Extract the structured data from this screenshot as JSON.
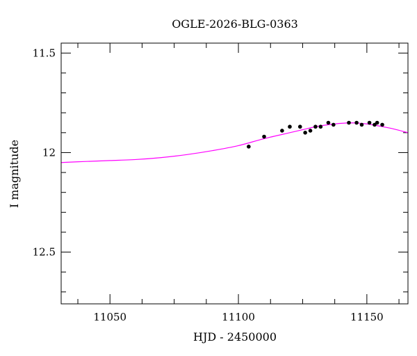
{
  "chart_data": {
    "type": "scatter",
    "title": "OGLE-2026-BLG-0363",
    "xlabel": "HJD - 2450000",
    "ylabel": "I magnitude",
    "xlim": [
      11031,
      11166
    ],
    "ylim": [
      12.76,
      11.45
    ],
    "y_inverted": true,
    "grid": false,
    "x_major_ticks": [
      11050,
      11100,
      11150
    ],
    "x_minor_ticks": [
      11025,
      11050,
      11075,
      11100,
      11125,
      11150,
      11175
    ],
    "x_minor_step": 12.5,
    "y_major_ticks": [
      11.5,
      12,
      12.5
    ],
    "y_minor_step": 0.1,
    "x_tick_labels": [
      "11050",
      "11100",
      "11150"
    ],
    "y_tick_labels": [
      "11.5",
      "12",
      "12.5"
    ],
    "colors": {
      "points": "#000000",
      "model": "#ff00ff",
      "axes": "#000000"
    },
    "series": [
      {
        "kind": "points",
        "x": [
          11104,
          11110,
          11117,
          11120,
          11124,
          11126,
          11128,
          11130,
          11132,
          11135,
          11137,
          11143,
          11146,
          11148,
          11151,
          11153,
          11154,
          11156
        ],
        "y": [
          11.97,
          11.92,
          11.89,
          11.87,
          11.87,
          11.9,
          11.89,
          11.87,
          11.87,
          11.85,
          11.86,
          11.85,
          11.85,
          11.86,
          11.85,
          11.86,
          11.85,
          11.86
        ]
      },
      {
        "kind": "model",
        "x": [
          11031,
          11040,
          11050,
          11060,
          11070,
          11080,
          11090,
          11100,
          11110,
          11120,
          11125,
          11130,
          11135,
          11140,
          11145,
          11150,
          11155,
          11160,
          11166
        ],
        "y": [
          12.05,
          12.045,
          12.04,
          12.035,
          12.025,
          12.01,
          11.99,
          11.965,
          11.93,
          11.9,
          11.885,
          11.87,
          11.86,
          11.853,
          11.851,
          11.856,
          11.867,
          11.88,
          11.9
        ]
      }
    ]
  }
}
